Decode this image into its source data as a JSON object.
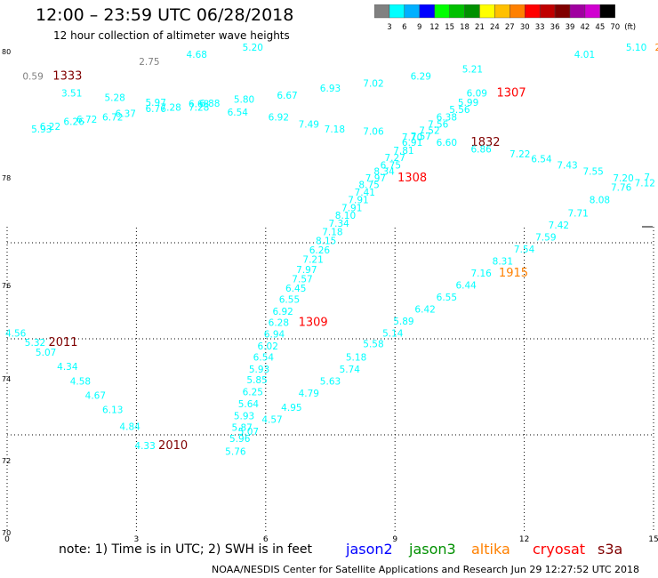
{
  "header": {
    "title": "12:00 – 23:59 UTC 06/28/2018",
    "subtitle": "12 hour collection of altimeter wave heights"
  },
  "colorbar": {
    "labels": [
      "3",
      "6",
      "9",
      "12",
      "15",
      "18",
      "21",
      "24",
      "27",
      "30",
      "33",
      "36",
      "39",
      "42",
      "45",
      "70",
      "(ft)"
    ],
    "colors": [
      "#808080",
      "#00ffff",
      "#00b0ff",
      "#0000ff",
      "#00ff00",
      "#00c000",
      "#009000",
      "#ffff00",
      "#ffc000",
      "#ff8000",
      "#ff0000",
      "#c00000",
      "#800000",
      "#a000a0",
      "#d000d0",
      "#000000"
    ]
  },
  "footer": {
    "note": "note: 1) Time is in UTC; 2) SWH is in feet",
    "satellites": [
      {
        "name": "jason2",
        "color": "#0000ff"
      },
      {
        "name": "jason3",
        "color": "#009000"
      },
      {
        "name": "altika",
        "color": "#ff8000"
      },
      {
        "name": "cryosat",
        "color": "#ff0000"
      },
      {
        "name": "s3a",
        "color": "#800000"
      }
    ],
    "credit": "NOAA/NESDIS Center for Satellite Applications and Research   Jun 29 12:27:52 UTC 2018"
  },
  "chart_data": {
    "type": "scatter",
    "x_ticks": [
      "0",
      "3",
      "6",
      "9",
      "12",
      "15"
    ],
    "y_ticks": [
      "70",
      "72",
      "74",
      "76",
      "78",
      "80"
    ],
    "labels": [
      {
        "t": "5.20",
        "c": "#00ffff",
        "lon": 5.7,
        "lat": 80.0
      },
      {
        "t": "4.68",
        "c": "#00ffff",
        "lon": 4.4,
        "lat": 79.85
      },
      {
        "t": "2.75",
        "c": "#808080",
        "lon": 3.3,
        "lat": 79.7
      },
      {
        "t": "0.59",
        "c": "#808080",
        "lon": 0.6,
        "lat": 79.4
      },
      {
        "t": "1333",
        "c": "#800000",
        "lon": 1.4,
        "lat": 79.4
      },
      {
        "t": "3.51",
        "c": "#00ffff",
        "lon": 1.5,
        "lat": 79.05
      },
      {
        "t": "5.28",
        "c": "#00ffff",
        "lon": 2.5,
        "lat": 78.95
      },
      {
        "t": "5.97",
        "c": "#00ffff",
        "lon": 3.45,
        "lat": 78.85
      },
      {
        "t": "6.76",
        "c": "#00ffff",
        "lon": 3.45,
        "lat": 78.72
      },
      {
        "t": "7.28",
        "c": "#00ffff",
        "lon": 3.8,
        "lat": 78.75
      },
      {
        "t": "6.68",
        "c": "#00ffff",
        "lon": 4.45,
        "lat": 78.82
      },
      {
        "t": "6.88",
        "c": "#00ffff",
        "lon": 4.7,
        "lat": 78.83
      },
      {
        "t": "7.28",
        "c": "#00ffff",
        "lon": 4.45,
        "lat": 78.75
      },
      {
        "t": "5.80",
        "c": "#00ffff",
        "lon": 5.5,
        "lat": 78.92
      },
      {
        "t": "6.37",
        "c": "#00ffff",
        "lon": 2.75,
        "lat": 78.62
      },
      {
        "t": "6.72",
        "c": "#00ffff",
        "lon": 2.45,
        "lat": 78.55
      },
      {
        "t": "6.72",
        "c": "#00ffff",
        "lon": 1.85,
        "lat": 78.5
      },
      {
        "t": "6.26",
        "c": "#00ffff",
        "lon": 1.55,
        "lat": 78.45
      },
      {
        "t": "6.22",
        "c": "#00ffff",
        "lon": 1.0,
        "lat": 78.35
      },
      {
        "t": "5.93",
        "c": "#00ffff",
        "lon": 0.8,
        "lat": 78.3
      },
      {
        "t": "6.67",
        "c": "#00ffff",
        "lon": 6.5,
        "lat": 79.0
      },
      {
        "t": "6.54",
        "c": "#00ffff",
        "lon": 5.35,
        "lat": 78.65
      },
      {
        "t": "6.92",
        "c": "#00ffff",
        "lon": 6.3,
        "lat": 78.55
      },
      {
        "t": "7.49",
        "c": "#00ffff",
        "lon": 7.0,
        "lat": 78.4
      },
      {
        "t": "7.18",
        "c": "#00ffff",
        "lon": 7.6,
        "lat": 78.3
      },
      {
        "t": "7.06",
        "c": "#00ffff",
        "lon": 8.5,
        "lat": 78.25
      },
      {
        "t": "6.93",
        "c": "#00ffff",
        "lon": 7.5,
        "lat": 79.15
      },
      {
        "t": "7.02",
        "c": "#00ffff",
        "lon": 8.5,
        "lat": 79.25
      },
      {
        "t": "6.29",
        "c": "#00ffff",
        "lon": 9.6,
        "lat": 79.4
      },
      {
        "t": "5.21",
        "c": "#00ffff",
        "lon": 10.8,
        "lat": 79.55
      },
      {
        "t": "4.01",
        "c": "#00ffff",
        "lon": 13.4,
        "lat": 79.85
      },
      {
        "t": "5.10",
        "c": "#00ffff",
        "lon": 14.6,
        "lat": 80.0
      },
      {
        "t": "2",
        "c": "#ff8000",
        "lon": 15.1,
        "lat": 80.0
      },
      {
        "t": "6.09",
        "c": "#00ffff",
        "lon": 10.9,
        "lat": 79.05
      },
      {
        "t": "1307",
        "c": "#ff0000",
        "lon": 11.7,
        "lat": 79.05
      },
      {
        "t": "5.99",
        "c": "#00ffff",
        "lon": 10.7,
        "lat": 78.85
      },
      {
        "t": "5.56",
        "c": "#00ffff",
        "lon": 10.5,
        "lat": 78.7
      },
      {
        "t": "6.38",
        "c": "#00ffff",
        "lon": 10.2,
        "lat": 78.55
      },
      {
        "t": "7.56",
        "c": "#00ffff",
        "lon": 10.0,
        "lat": 78.4
      },
      {
        "t": "7.52",
        "c": "#00ffff",
        "lon": 9.8,
        "lat": 78.27
      },
      {
        "t": "7.57",
        "c": "#00ffff",
        "lon": 9.6,
        "lat": 78.15
      },
      {
        "t": "7.70",
        "c": "#00ffff",
        "lon": 9.4,
        "lat": 78.13
      },
      {
        "t": "6.91",
        "c": "#00ffff",
        "lon": 9.4,
        "lat": 78.02
      },
      {
        "t": "6.60",
        "c": "#00ffff",
        "lon": 10.2,
        "lat": 78.02
      },
      {
        "t": "1832",
        "c": "#800000",
        "lon": 11.1,
        "lat": 78.02
      },
      {
        "t": "6.86",
        "c": "#00ffff",
        "lon": 11.0,
        "lat": 77.88
      },
      {
        "t": "7.22",
        "c": "#00ffff",
        "lon": 11.9,
        "lat": 77.78
      },
      {
        "t": "6.54",
        "c": "#00ffff",
        "lon": 12.4,
        "lat": 77.68
      },
      {
        "t": "7.43",
        "c": "#00ffff",
        "lon": 13.0,
        "lat": 77.55
      },
      {
        "t": "7.55",
        "c": "#00ffff",
        "lon": 13.6,
        "lat": 77.42
      },
      {
        "t": "7.20",
        "c": "#00ffff",
        "lon": 14.3,
        "lat": 77.28
      },
      {
        "t": "7.12",
        "c": "#00ffff",
        "lon": 14.8,
        "lat": 77.18
      },
      {
        "t": "7.81",
        "c": "#00ffff",
        "lon": 9.2,
        "lat": 77.85
      },
      {
        "t": "7.27",
        "c": "#00ffff",
        "lon": 9.0,
        "lat": 77.7
      },
      {
        "t": "6.75",
        "c": "#00ffff",
        "lon": 8.9,
        "lat": 77.55
      },
      {
        "t": "8.34",
        "c": "#00ffff",
        "lon": 8.75,
        "lat": 77.42
      },
      {
        "t": "7.97",
        "c": "#00ffff",
        "lon": 8.55,
        "lat": 77.28
      },
      {
        "t": "1308",
        "c": "#ff0000",
        "lon": 9.4,
        "lat": 77.28
      },
      {
        "t": "8.75",
        "c": "#00ffff",
        "lon": 8.4,
        "lat": 77.14
      },
      {
        "t": "7.41",
        "c": "#00ffff",
        "lon": 8.3,
        "lat": 76.98
      },
      {
        "t": "7.91",
        "c": "#00ffff",
        "lon": 8.15,
        "lat": 76.82
      },
      {
        "t": "7.91",
        "c": "#00ffff",
        "lon": 8.0,
        "lat": 76.66
      },
      {
        "t": "8.10",
        "c": "#00ffff",
        "lon": 7.85,
        "lat": 76.5
      },
      {
        "t": "7.34",
        "c": "#00ffff",
        "lon": 7.7,
        "lat": 76.33
      },
      {
        "t": "7.18",
        "c": "#00ffff",
        "lon": 7.55,
        "lat": 76.16
      },
      {
        "t": "8.15",
        "c": "#00ffff",
        "lon": 7.4,
        "lat": 75.97
      },
      {
        "t": "6.26",
        "c": "#00ffff",
        "lon": 7.25,
        "lat": 75.78
      },
      {
        "t": "7.21",
        "c": "#00ffff",
        "lon": 7.1,
        "lat": 75.58
      },
      {
        "t": "7.97",
        "c": "#00ffff",
        "lon": 6.95,
        "lat": 75.37
      },
      {
        "t": "7.57",
        "c": "#00ffff",
        "lon": 6.85,
        "lat": 75.18
      },
      {
        "t": "6.45",
        "c": "#00ffff",
        "lon": 6.7,
        "lat": 74.98
      },
      {
        "t": "6.55",
        "c": "#00ffff",
        "lon": 6.55,
        "lat": 74.75
      },
      {
        "t": "6.92",
        "c": "#00ffff",
        "lon": 6.4,
        "lat": 74.5
      },
      {
        "t": "6.28",
        "c": "#00ffff",
        "lon": 6.3,
        "lat": 74.27
      },
      {
        "t": "1309",
        "c": "#ff0000",
        "lon": 7.1,
        "lat": 74.27
      },
      {
        "t": "6.94",
        "c": "#00ffff",
        "lon": 6.2,
        "lat": 74.03
      },
      {
        "t": "6.02",
        "c": "#00ffff",
        "lon": 6.05,
        "lat": 73.78
      },
      {
        "t": "6.54",
        "c": "#00ffff",
        "lon": 5.95,
        "lat": 73.55
      },
      {
        "t": "5.93",
        "c": "#00ffff",
        "lon": 5.85,
        "lat": 73.3
      },
      {
        "t": "5.85",
        "c": "#00ffff",
        "lon": 5.8,
        "lat": 73.07
      },
      {
        "t": "6.25",
        "c": "#00ffff",
        "lon": 5.7,
        "lat": 72.82
      },
      {
        "t": "5.64",
        "c": "#00ffff",
        "lon": 5.6,
        "lat": 72.57
      },
      {
        "t": "5.93",
        "c": "#00ffff",
        "lon": 5.5,
        "lat": 72.32
      },
      {
        "t": "5.87",
        "c": "#00ffff",
        "lon": 5.45,
        "lat": 72.08
      },
      {
        "t": "5.96",
        "c": "#00ffff",
        "lon": 5.4,
        "lat": 71.85
      },
      {
        "t": "5.76",
        "c": "#00ffff",
        "lon": 5.3,
        "lat": 71.58
      },
      {
        "t": "5.07",
        "c": "#00ffff",
        "lon": 5.6,
        "lat": 72.0
      },
      {
        "t": "4.57",
        "c": "#00ffff",
        "lon": 6.15,
        "lat": 72.25
      },
      {
        "t": "4.95",
        "c": "#00ffff",
        "lon": 6.6,
        "lat": 72.5
      },
      {
        "t": "4.79",
        "c": "#00ffff",
        "lon": 7.0,
        "lat": 72.8
      },
      {
        "t": "5.63",
        "c": "#00ffff",
        "lon": 7.5,
        "lat": 73.05
      },
      {
        "t": "5.74",
        "c": "#00ffff",
        "lon": 7.95,
        "lat": 73.3
      },
      {
        "t": "5.18",
        "c": "#00ffff",
        "lon": 8.1,
        "lat": 73.55
      },
      {
        "t": "5.58",
        "c": "#00ffff",
        "lon": 8.5,
        "lat": 73.82
      },
      {
        "t": "5.14",
        "c": "#00ffff",
        "lon": 8.95,
        "lat": 74.05
      },
      {
        "t": "5.89",
        "c": "#00ffff",
        "lon": 9.2,
        "lat": 74.3
      },
      {
        "t": "6.42",
        "c": "#00ffff",
        "lon": 9.7,
        "lat": 74.55
      },
      {
        "t": "6.55",
        "c": "#00ffff",
        "lon": 10.2,
        "lat": 74.8
      },
      {
        "t": "6.44",
        "c": "#00ffff",
        "lon": 10.65,
        "lat": 75.05
      },
      {
        "t": "7.16",
        "c": "#00ffff",
        "lon": 11.0,
        "lat": 75.3
      },
      {
        "t": "1915",
        "c": "#ff8000",
        "lon": 11.75,
        "lat": 75.3
      },
      {
        "t": "8.31",
        "c": "#00ffff",
        "lon": 11.5,
        "lat": 75.55
      },
      {
        "t": "7.54",
        "c": "#00ffff",
        "lon": 12.0,
        "lat": 75.8
      },
      {
        "t": "7.59",
        "c": "#00ffff",
        "lon": 12.5,
        "lat": 76.05
      },
      {
        "t": "7.42",
        "c": "#00ffff",
        "lon": 12.8,
        "lat": 76.3
      },
      {
        "t": "7.71",
        "c": "#00ffff",
        "lon": 13.25,
        "lat": 76.55
      },
      {
        "t": "8.08",
        "c": "#00ffff",
        "lon": 13.75,
        "lat": 76.82
      },
      {
        "t": "7.76",
        "c": "#00ffff",
        "lon": 14.25,
        "lat": 77.08
      },
      {
        "t": "7",
        "c": "#00ffff",
        "lon": 14.85,
        "lat": 77.3
      },
      {
        "t": "4.56",
        "c": "#00ffff",
        "lon": 0.2,
        "lat": 74.05
      },
      {
        "t": "5.32",
        "c": "#00ffff",
        "lon": 0.65,
        "lat": 73.85
      },
      {
        "t": "2011",
        "c": "#800000",
        "lon": 1.3,
        "lat": 73.85
      },
      {
        "t": "5.07",
        "c": "#00ffff",
        "lon": 0.9,
        "lat": 73.65
      },
      {
        "t": "4.34",
        "c": "#00ffff",
        "lon": 1.4,
        "lat": 73.35
      },
      {
        "t": "4.58",
        "c": "#00ffff",
        "lon": 1.7,
        "lat": 73.05
      },
      {
        "t": "4.67",
        "c": "#00ffff",
        "lon": 2.05,
        "lat": 72.75
      },
      {
        "t": "6.13",
        "c": "#00ffff",
        "lon": 2.45,
        "lat": 72.45
      },
      {
        "t": "4.84",
        "c": "#00ffff",
        "lon": 2.85,
        "lat": 72.1
      },
      {
        "t": "4.33",
        "c": "#00ffff",
        "lon": 3.2,
        "lat": 71.7
      },
      {
        "t": "2010",
        "c": "#800000",
        "lon": 3.85,
        "lat": 71.7
      }
    ]
  }
}
